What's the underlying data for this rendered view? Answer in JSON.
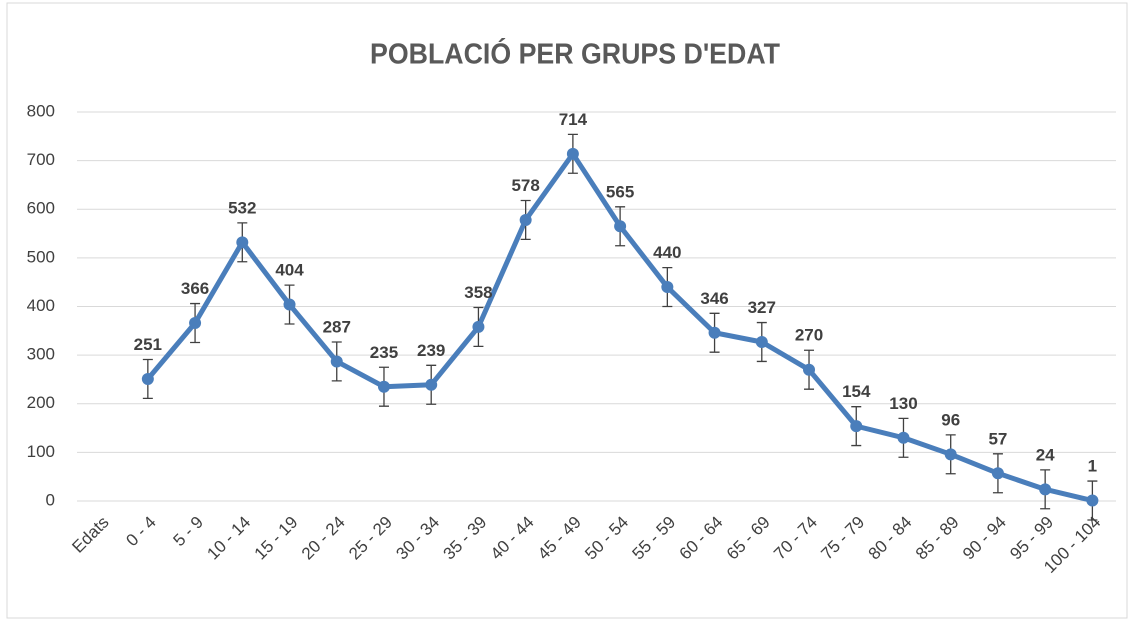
{
  "chart_data": {
    "type": "line",
    "title": "POBLACIÓ PER GRUPS D'EDAT",
    "categories": [
      "Edats",
      "0 - 4",
      "5 - 9",
      "10 - 14",
      "15 - 19",
      "20 - 24",
      "25 - 29",
      "30 - 34",
      "35 - 39",
      "40 - 44",
      "45 - 49",
      "50 - 54",
      "55 - 59",
      "60 - 64",
      "65 - 69",
      "70 - 74",
      "75 - 79",
      "80 - 84",
      "85 - 89",
      "90 - 94",
      "95 - 99",
      "100 - 104"
    ],
    "values": [
      null,
      251,
      366,
      532,
      404,
      287,
      235,
      239,
      358,
      578,
      714,
      565,
      440,
      346,
      327,
      270,
      154,
      130,
      96,
      57,
      24,
      1
    ],
    "errors": [
      null,
      40,
      40,
      40,
      40,
      40,
      40,
      40,
      40,
      40,
      40,
      40,
      40,
      40,
      40,
      40,
      40,
      40,
      40,
      40,
      40,
      40
    ],
    "color": "#4a7ebb",
    "ylim": [
      0,
      800
    ],
    "yticks": [
      0,
      100,
      200,
      300,
      400,
      500,
      600,
      700,
      800
    ],
    "grid": true
  }
}
